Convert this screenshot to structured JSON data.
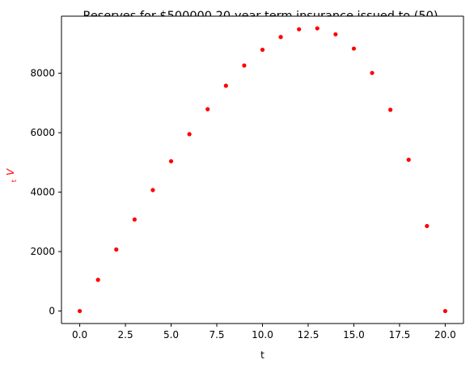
{
  "chart_data": {
    "type": "scatter",
    "title": "Reserves for $500000 20-year term insurance issued to (50)",
    "xlabel": "t",
    "ylabel_sub": "t",
    "ylabel_main": "V",
    "ylabel_color": "#ff0000",
    "marker_color": "#ff0000",
    "xlim": [
      -1,
      21
    ],
    "ylim": [
      -420,
      9920
    ],
    "xticks": [
      0,
      2.5,
      5,
      7.5,
      10,
      12.5,
      15,
      17.5,
      20
    ],
    "xtick_labels": [
      "0.0",
      "2.5",
      "5.0",
      "7.5",
      "10.0",
      "12.5",
      "15.0",
      "17.5",
      "20.0"
    ],
    "yticks": [
      0,
      2000,
      4000,
      6000,
      8000
    ],
    "ytick_labels": [
      "0",
      "2000",
      "4000",
      "6000",
      "8000"
    ],
    "grid": false,
    "legend": "none",
    "x": [
      0,
      1,
      2,
      3,
      4,
      5,
      6,
      7,
      8,
      9,
      10,
      11,
      12,
      13,
      14,
      15,
      16,
      17,
      18,
      19,
      20
    ],
    "y": [
      0,
      1050,
      2070,
      3080,
      4070,
      5040,
      5950,
      6790,
      7580,
      8260,
      8790,
      9220,
      9480,
      9510,
      9310,
      8830,
      8010,
      6770,
      5090,
      2860,
      0
    ]
  }
}
